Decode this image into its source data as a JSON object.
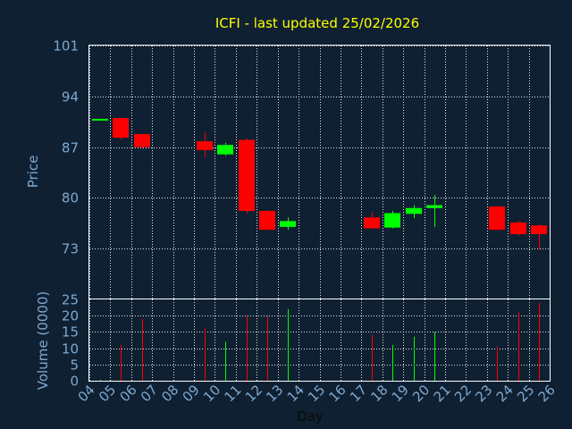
{
  "chart_data": [
    {
      "type": "candlestick",
      "title": "ICFI - last updated 25/02/2026",
      "xlabel": "Day",
      "ylabel": "Price",
      "ylim": [
        66,
        101
      ],
      "yticks": [
        73,
        80,
        87,
        94,
        101
      ],
      "grid": true,
      "colors": {
        "up": "#00ff00",
        "down": "#ff0000",
        "title": "#ffff00",
        "axis_text": "#7fa8cf",
        "grid": "#ffffff",
        "frame": "#ffffff",
        "background": "#0f2032"
      },
      "candles": [
        {
          "day": 4,
          "open": 90.8,
          "high": 90.9,
          "low": 90.7,
          "close": 90.9
        },
        {
          "day": 5,
          "open": 91.0,
          "high": 91.0,
          "low": 88.0,
          "close": 88.3
        },
        {
          "day": 6,
          "open": 88.8,
          "high": 88.8,
          "low": 86.8,
          "close": 87.0
        },
        {
          "day": 9,
          "open": 87.8,
          "high": 89.0,
          "low": 85.6,
          "close": 86.6
        },
        {
          "day": 10,
          "open": 86.0,
          "high": 87.6,
          "low": 85.8,
          "close": 87.3
        },
        {
          "day": 11,
          "open": 88.0,
          "high": 88.2,
          "low": 77.8,
          "close": 78.2
        },
        {
          "day": 12,
          "open": 78.2,
          "high": 78.3,
          "low": 75.6,
          "close": 75.6
        },
        {
          "day": 13,
          "open": 76.0,
          "high": 77.3,
          "low": 75.6,
          "close": 76.8
        },
        {
          "day": 17,
          "open": 77.3,
          "high": 78.0,
          "low": 75.8,
          "close": 75.8
        },
        {
          "day": 18,
          "open": 75.9,
          "high": 78.2,
          "low": 75.8,
          "close": 77.9
        },
        {
          "day": 19,
          "open": 77.8,
          "high": 79.0,
          "low": 77.2,
          "close": 78.6
        },
        {
          "day": 20,
          "open": 78.6,
          "high": 80.4,
          "low": 76.0,
          "close": 79.0
        },
        {
          "day": 23,
          "open": 78.8,
          "high": 78.9,
          "low": 75.6,
          "close": 75.6
        },
        {
          "day": 24,
          "open": 76.6,
          "high": 76.8,
          "low": 74.8,
          "close": 75.0
        },
        {
          "day": 25,
          "open": 76.2,
          "high": 76.3,
          "low": 72.8,
          "close": 75.0
        }
      ]
    },
    {
      "type": "bar",
      "xlabel": "Day",
      "ylabel": "Volume (0000)",
      "ylim": [
        0,
        25
      ],
      "yticks": [
        0,
        5,
        10,
        15,
        20,
        25
      ],
      "grid": true,
      "xlim": [
        4,
        26
      ],
      "x": [
        4,
        5,
        6,
        7,
        8,
        9,
        10,
        11,
        12,
        13,
        14,
        15,
        16,
        17,
        18,
        19,
        20,
        21,
        22,
        23,
        24,
        25,
        26
      ],
      "xtick_labels": [
        "04",
        "05",
        "06",
        "07",
        "08",
        "09",
        "10",
        "11",
        "12",
        "13",
        "14",
        "15",
        "16",
        "17",
        "18",
        "19",
        "20",
        "21",
        "22",
        "23",
        "24",
        "25",
        "26"
      ],
      "bars": [
        {
          "day": 4,
          "value": 0.3,
          "direction": "up"
        },
        {
          "day": 5,
          "value": 11,
          "direction": "down"
        },
        {
          "day": 6,
          "value": 19,
          "direction": "down"
        },
        {
          "day": 9,
          "value": 16,
          "direction": "down"
        },
        {
          "day": 10,
          "value": 12,
          "direction": "up"
        },
        {
          "day": 11,
          "value": 20,
          "direction": "down"
        },
        {
          "day": 12,
          "value": 20,
          "direction": "down"
        },
        {
          "day": 13,
          "value": 22,
          "direction": "up"
        },
        {
          "day": 17,
          "value": 14,
          "direction": "down"
        },
        {
          "day": 18,
          "value": 11,
          "direction": "up"
        },
        {
          "day": 19,
          "value": 13.5,
          "direction": "up"
        },
        {
          "day": 20,
          "value": 15,
          "direction": "up"
        },
        {
          "day": 23,
          "value": 10.5,
          "direction": "down"
        },
        {
          "day": 24,
          "value": 21,
          "direction": "down"
        },
        {
          "day": 25,
          "value": 24,
          "direction": "down"
        }
      ]
    }
  ]
}
